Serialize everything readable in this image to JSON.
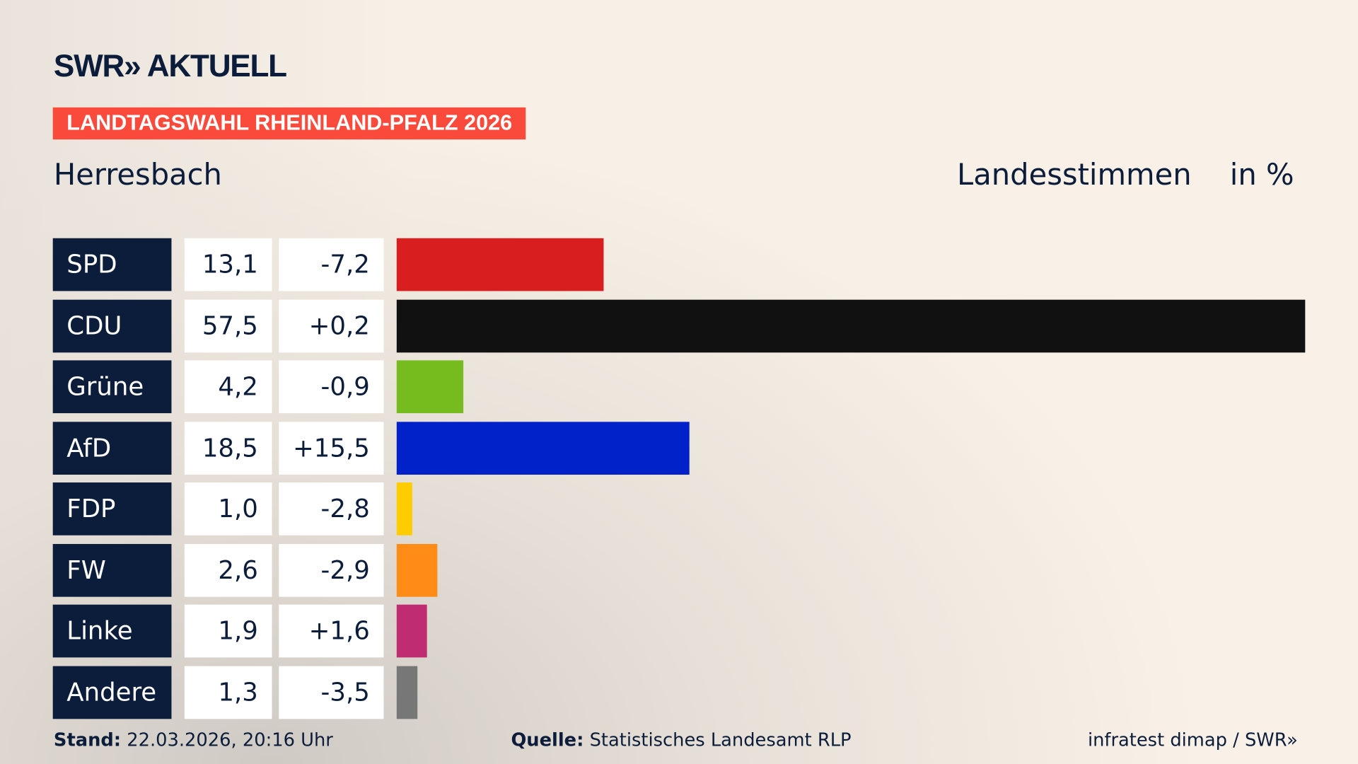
{
  "header": {
    "logo": "SWR» AKTUELL",
    "badge": "LANDTAGSWAHL RHEINLAND-PFALZ 2026",
    "place": "Herresbach",
    "vote_type": "Landesstimmen",
    "unit": "in %"
  },
  "chart_data": {
    "type": "bar",
    "orientation": "horizontal",
    "xlim": [
      0,
      57.5
    ],
    "categories": [
      "SPD",
      "CDU",
      "Grüne",
      "AfD",
      "FDP",
      "FW",
      "Linke",
      "Andere"
    ],
    "values": [
      13.1,
      57.5,
      4.2,
      18.5,
      1.0,
      2.6,
      1.9,
      1.3
    ],
    "values_label": [
      "13,1",
      "57,5",
      "4,2",
      "18,5",
      "1,0",
      "2,6",
      "1,9",
      "1,3"
    ],
    "diff_label": [
      "-7,2",
      "+0,2",
      "-0,9",
      "+15,5",
      "-2,8",
      "-2,9",
      "+1,6",
      "-3,5"
    ],
    "colors": [
      "#d81e1e",
      "#111111",
      "#76bc1f",
      "#0022c8",
      "#ffcc00",
      "#ff8c17",
      "#c02c72",
      "#777777"
    ]
  },
  "footer": {
    "stand_label": "Stand:",
    "stand": "22.03.2026, 20:16 Uhr",
    "source_label": "Quelle:",
    "source": "Statistisches Landesamt RLP",
    "credit": "infratest dimap / SWR»"
  }
}
